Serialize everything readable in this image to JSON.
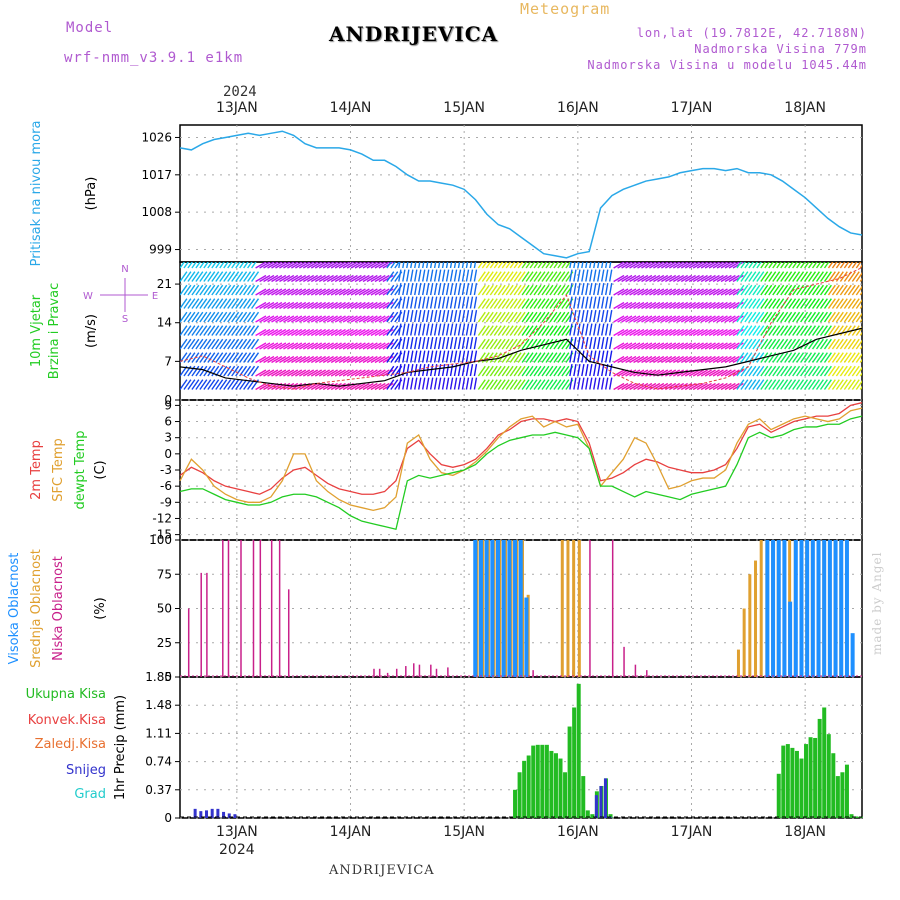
{
  "header": {
    "model_label": "Model",
    "model_name": "wrf-nmm_v3.9.1 e1km",
    "title": "ANDRIJEVICA",
    "subtitle": "Meteogram",
    "lonlat": "lon,lat (19.7812E, 42.7188N)",
    "altitude": "Nadmorska Visina 779m",
    "model_altitude": "Nadmorska Visina u modelu 1045.44m"
  },
  "footer": {
    "location": "ANDRIJEVICA",
    "credit": "made by Angel"
  },
  "colors": {
    "pressure": "#2aa8e8",
    "temp2m": "#e84040",
    "sfc": "#e0a030",
    "dewpt": "#22cc22",
    "high": "#1e90ff",
    "mid": "#e0a030",
    "low": "#c8208a",
    "rain": "#22bb22",
    "conv": "#e84040",
    "frozen": "#e87030",
    "snow": "#3333cc",
    "grad": "#22cccc",
    "purple": "#b05ad0"
  },
  "chart_data": [
    {
      "type": "line",
      "title": "",
      "ylabel_left": "Pritisak na nivou mora",
      "ylabel": "(hPa)",
      "yticks": [
        999,
        1008,
        1017,
        1026
      ],
      "ylim": [
        996,
        1029
      ],
      "x": [
        12.5,
        12.6,
        12.7,
        12.8,
        12.9,
        13.0,
        13.1,
        13.2,
        13.3,
        13.4,
        13.5,
        13.6,
        13.7,
        13.8,
        13.9,
        14.0,
        14.1,
        14.2,
        14.3,
        14.4,
        14.5,
        14.6,
        14.7,
        14.8,
        14.9,
        15.0,
        15.1,
        15.2,
        15.3,
        15.4,
        15.5,
        15.6,
        15.7,
        15.8,
        15.9,
        16.0,
        16.1,
        16.2,
        16.3,
        16.4,
        16.5,
        16.6,
        16.7,
        16.8,
        16.9,
        17.0,
        17.1,
        17.2,
        17.3,
        17.4,
        17.5,
        17.6,
        17.7,
        17.8,
        17.9,
        18.0,
        18.1,
        18.2,
        18.3,
        18.4,
        18.5
      ],
      "values": [
        1023.5,
        1023,
        1024.5,
        1025.5,
        1026,
        1026.5,
        1027,
        1026.5,
        1027,
        1027.5,
        1026.5,
        1024.5,
        1023.5,
        1023.5,
        1023.5,
        1023,
        1022,
        1020.5,
        1020.5,
        1019,
        1017,
        1015.5,
        1015.5,
        1015,
        1014.5,
        1013.5,
        1011,
        1007.5,
        1005,
        1004,
        1002,
        1000,
        998,
        997.5,
        997,
        998,
        998.5,
        1009,
        1012,
        1013.5,
        1014.5,
        1015.5,
        1016,
        1016.5,
        1017.5,
        1018,
        1018.5,
        1018.5,
        1018,
        1018.5,
        1017.5,
        1017.5,
        1017,
        1015.5,
        1013.5,
        1011.5,
        1009,
        1006.5,
        1004.5,
        1003,
        1002.5
      ]
    },
    {
      "type": "line",
      "ylabel_left": "10m Vjetar",
      "ylabel_left2": "Brzina i Pravac",
      "ylabel": "(m/s)",
      "yticks": [
        0,
        7,
        14,
        21
      ],
      "ylim": [
        0,
        25
      ],
      "compass": {
        "n": "N",
        "s": "S",
        "e": "E",
        "w": "W"
      },
      "x": [
        12.5,
        12.7,
        12.9,
        13.1,
        13.3,
        13.5,
        13.7,
        13.9,
        14.1,
        14.3,
        14.5,
        14.7,
        14.9,
        15.1,
        15.3,
        15.5,
        15.7,
        15.9,
        16.1,
        16.3,
        16.5,
        16.7,
        16.9,
        17.1,
        17.3,
        17.5,
        17.7,
        17.9,
        18.1,
        18.3,
        18.5
      ],
      "series": [
        {
          "values": [
            6,
            5.5,
            4,
            3.5,
            3,
            2.5,
            3,
            2.5,
            3,
            3.5,
            5,
            5.5,
            6,
            7,
            7.5,
            9,
            10,
            11,
            7,
            6,
            5,
            4.5,
            5,
            5.5,
            6,
            7,
            8,
            9,
            11,
            12,
            13
          ]
        },
        {
          "values": [
            7,
            8,
            6,
            4,
            2.5,
            2,
            3,
            3.5,
            4,
            4.5,
            5,
            6,
            6.5,
            7,
            8,
            10,
            14,
            19,
            8,
            5,
            3,
            2,
            2.5,
            3,
            4,
            6,
            14,
            20,
            21,
            22,
            24
          ]
        }
      ]
    },
    {
      "type": "line",
      "ylabel_left": "2m Temp",
      "ylabel_left2": "SFC Temp",
      "ylabel_left3": "dewpt Temp",
      "ylabel": "(C)",
      "yticks": [
        -15,
        -12,
        -9,
        -6,
        -3,
        0,
        3,
        6,
        9
      ],
      "ylim": [
        -16,
        10
      ],
      "x": [
        12.5,
        12.6,
        12.7,
        12.8,
        12.9,
        13.0,
        13.1,
        13.2,
        13.3,
        13.4,
        13.5,
        13.6,
        13.7,
        13.8,
        13.9,
        14.0,
        14.1,
        14.2,
        14.3,
        14.4,
        14.5,
        14.6,
        14.7,
        14.8,
        14.9,
        15.0,
        15.1,
        15.2,
        15.3,
        15.4,
        15.5,
        15.6,
        15.7,
        15.8,
        15.9,
        16.0,
        16.1,
        16.2,
        16.3,
        16.4,
        16.5,
        16.6,
        16.7,
        16.8,
        16.9,
        17.0,
        17.1,
        17.2,
        17.3,
        17.4,
        17.5,
        17.6,
        17.7,
        17.8,
        17.9,
        18.0,
        18.1,
        18.2,
        18.3,
        18.4,
        18.5
      ],
      "series": [
        {
          "name": "2m Temp",
          "values": [
            -4,
            -2.5,
            -3.5,
            -5,
            -6,
            -6.5,
            -7,
            -7.5,
            -6.5,
            -4.5,
            -3,
            -2.5,
            -4,
            -5.5,
            -6.5,
            -7,
            -7.5,
            -7.5,
            -7,
            -5,
            1,
            2.5,
            0,
            -2,
            -2.5,
            -2,
            -1,
            1,
            3.5,
            4.5,
            6,
            6.5,
            6.5,
            6,
            6.5,
            6,
            2,
            -5,
            -4.5,
            -3.5,
            -2,
            -1,
            -1.5,
            -2.5,
            -3,
            -3.5,
            -3.5,
            -3,
            -2,
            1,
            5,
            5.5,
            4,
            5,
            6,
            6.5,
            7,
            7,
            7.5,
            9,
            9.5
          ]
        },
        {
          "name": "SFC Temp",
          "values": [
            -5,
            -1,
            -3,
            -6,
            -7.5,
            -8.5,
            -9,
            -9,
            -8,
            -5,
            0,
            0,
            -5,
            -7,
            -8.5,
            -9.5,
            -10,
            -10.5,
            -10,
            -8,
            2,
            3.5,
            -1,
            -3.5,
            -4,
            -3,
            -1.5,
            0.5,
            3,
            5,
            6.5,
            7,
            5,
            6,
            5,
            5.5,
            1,
            -6,
            -3.5,
            -1,
            3,
            2,
            -2,
            -6.5,
            -6,
            -5,
            -4.5,
            -4.5,
            -3,
            2,
            5.5,
            6.5,
            4.5,
            5.5,
            6.5,
            7,
            6.5,
            6,
            6.5,
            8,
            8.5
          ]
        },
        {
          "name": "dewpt Temp",
          "values": [
            -7,
            -6.5,
            -6.5,
            -7.5,
            -8.5,
            -9,
            -9.5,
            -9.5,
            -9,
            -8,
            -7.5,
            -7.5,
            -8,
            -9,
            -10,
            -11.5,
            -12.5,
            -13,
            -13.5,
            -14,
            -5,
            -4,
            -4.5,
            -4,
            -3.5,
            -3,
            -2,
            0,
            1.5,
            2.5,
            3,
            3.5,
            3.5,
            4,
            3.5,
            3,
            1,
            -6,
            -6,
            -7,
            -8,
            -7,
            -7.5,
            -8,
            -8.5,
            -7.5,
            -7,
            -6.5,
            -6,
            -2,
            3,
            4,
            3,
            3.5,
            4.5,
            5,
            5,
            5.5,
            5.5,
            6.5,
            7
          ]
        }
      ]
    },
    {
      "type": "bar",
      "ylabel_left": "Visoka Oblacnost",
      "ylabel_left2": "Srednja Oblacnost",
      "ylabel_left3": "Niska Oblacnost",
      "ylabel": "(%)",
      "yticks": [
        0,
        25,
        50,
        75,
        100
      ],
      "ylim": [
        0,
        100
      ],
      "series": [
        {
          "name": "Niska",
          "x": [
            12.57,
            12.68,
            12.73,
            12.87,
            12.92,
            13.03,
            13.14,
            13.2,
            13.3,
            13.37,
            13.45,
            14.2,
            14.25,
            14.32,
            14.4,
            14.48,
            14.55,
            14.6,
            14.7,
            14.75,
            14.85,
            15.35,
            15.6,
            15.95,
            16.1,
            16.3,
            16.4,
            16.5,
            16.6
          ],
          "values": [
            50,
            76,
            76,
            100,
            100,
            100,
            100,
            100,
            100,
            100,
            64,
            6,
            6,
            3,
            6,
            8,
            10,
            9,
            9,
            6,
            7,
            5,
            5,
            5,
            100,
            100,
            22,
            9,
            5
          ]
        },
        {
          "name": "Srednja",
          "x": [
            15.1,
            15.15,
            15.2,
            15.25,
            15.3,
            15.35,
            15.4,
            15.45,
            15.5,
            15.55,
            15.85,
            15.9,
            15.95,
            16.0,
            17.4,
            17.45,
            17.5,
            17.55,
            17.6,
            17.65,
            17.7,
            17.75,
            17.8,
            17.85,
            17.9,
            17.95,
            18.0,
            18.05,
            18.1,
            18.15,
            18.2,
            18.25,
            18.3
          ],
          "values": [
            100,
            100,
            100,
            100,
            100,
            100,
            100,
            100,
            100,
            60,
            100,
            100,
            100,
            100,
            20,
            50,
            75,
            85,
            100,
            100,
            100,
            100,
            100,
            100,
            100,
            100,
            100,
            100,
            100,
            100,
            100,
            100,
            100
          ]
        },
        {
          "name": "Visoka",
          "x": [
            15.08,
            15.13,
            15.18,
            15.23,
            15.28,
            15.33,
            15.38,
            15.43,
            15.48,
            15.53,
            17.65,
            17.7,
            17.75,
            17.8,
            17.85,
            17.9,
            17.95,
            18.0,
            18.05,
            18.1,
            18.15,
            18.2,
            18.25,
            18.3,
            18.35,
            18.4
          ],
          "values": [
            100,
            100,
            100,
            100,
            100,
            100,
            100,
            100,
            100,
            58,
            100,
            100,
            100,
            100,
            55,
            100,
            100,
            100,
            100,
            100,
            100,
            100,
            100,
            100,
            100,
            32
          ]
        }
      ]
    },
    {
      "type": "bar",
      "ylabel_left": "Ukupna Kisa",
      "ylabel_left2": "Konvek.Kisa",
      "ylabel_left3": "Zaledj.Kisa",
      "ylabel_left4": "Snijeg",
      "ylabel_left5": "Grad",
      "ylabel": "1hr Precip (mm)",
      "yticks": [
        0,
        0.37,
        0.74,
        1.11,
        1.48,
        1.85
      ],
      "ylim": [
        0,
        1.85
      ],
      "xticks": [
        "13JAN",
        "14JAN",
        "15JAN",
        "16JAN",
        "17JAN",
        "18JAN"
      ],
      "xyear": "2024",
      "series": [
        {
          "name": "Ukupna Kisa",
          "x": [
            15.43,
            15.47,
            15.51,
            15.55,
            15.59,
            15.63,
            15.67,
            15.71,
            15.75,
            15.79,
            15.83,
            15.87,
            15.91,
            15.95,
            15.99,
            16.03,
            16.07,
            16.11,
            16.15,
            16.19,
            16.23,
            16.27,
            17.75,
            17.79,
            17.83,
            17.87,
            17.91,
            17.95,
            17.99,
            18.03,
            18.07,
            18.11,
            18.15,
            18.19,
            18.23,
            18.27,
            18.31,
            18.35,
            18.39,
            18.43,
            18.47
          ],
          "values": [
            0.37,
            0.6,
            0.75,
            0.82,
            0.95,
            0.96,
            0.96,
            0.96,
            0.88,
            0.85,
            0.78,
            0.6,
            1.2,
            1.45,
            1.76,
            0.55,
            0.1,
            0.05,
            0.35,
            0.42,
            0.52,
            0.05,
            0.58,
            0.95,
            0.97,
            0.92,
            0.88,
            0.78,
            0.97,
            1.06,
            1.05,
            1.3,
            1.45,
            1.1,
            0.85,
            0.55,
            0.6,
            0.7,
            0.05,
            0.02,
            0.02
          ]
        },
        {
          "name": "Snijeg",
          "x": [
            12.62,
            12.67,
            12.72,
            12.77,
            12.82,
            12.87,
            12.92,
            12.97,
            16.15,
            16.19,
            16.23,
            16.27
          ],
          "values": [
            0.12,
            0.09,
            0.1,
            0.12,
            0.12,
            0.08,
            0.06,
            0.05,
            0.3,
            0.42,
            0.52,
            0.02
          ]
        }
      ]
    }
  ]
}
